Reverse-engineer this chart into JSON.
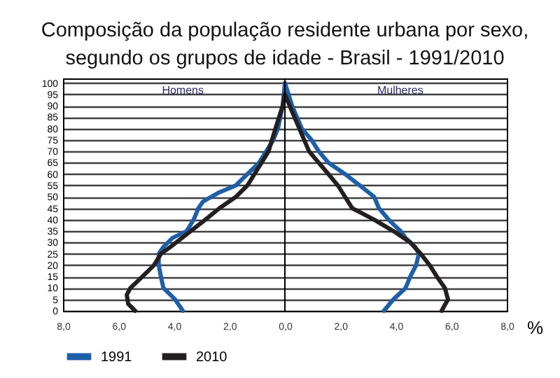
{
  "chart_data": {
    "type": "line",
    "title": "Composição da população residente urbana por sexo, segundo os grupos de idade - Brasil - 1991/2010",
    "xlabel": "%",
    "annotations": [
      "Homens",
      "Mulheres"
    ],
    "series": [
      {
        "name": "1991",
        "color": "#1f5fa8",
        "x": [
          -3.68,
          -3.96,
          -4.38,
          -4.47,
          -4.55,
          -4.55,
          -4.38,
          -4.05,
          -3.54,
          -3.29,
          -3.12,
          -2.95,
          -2.36,
          -1.77,
          -1.52,
          -0.93,
          -0.67,
          -0.42,
          -0.25,
          -0.08,
          0,
          0.26,
          0.61,
          0.96,
          1.22,
          1.57,
          2.17,
          2.7,
          3.22,
          3.39,
          3.74,
          4.17,
          4.35,
          4.7,
          4.83,
          4.73,
          4.52,
          4.35,
          3.91,
          3.57
        ],
        "values": [
          0,
          5,
          10,
          15,
          20,
          25,
          28,
          32,
          35,
          40,
          45,
          48,
          52,
          55,
          58,
          65,
          70,
          75,
          80,
          90,
          100,
          90,
          80,
          75,
          70,
          65,
          60,
          55,
          50,
          45,
          40,
          35,
          32,
          28,
          25,
          20,
          15,
          10,
          5,
          0
        ]
      },
      {
        "name": "2010",
        "color": "#231f20",
        "x": [
          -5.4,
          -5.65,
          -5.7,
          -5.57,
          -5.31,
          -4.97,
          -4.72,
          -4.47,
          -4.13,
          -3.71,
          -3.29,
          -2.87,
          -2.36,
          -1.77,
          -1.35,
          -1.1,
          -0.84,
          -0.59,
          -0.34,
          -0.08,
          0,
          0.17,
          0.52,
          0.87,
          1.22,
          1.57,
          1.91,
          2.17,
          2.43,
          3.22,
          3.91,
          4.52,
          4.9,
          5.22,
          5.48,
          5.77,
          5.88,
          5.65
        ],
        "values": [
          0,
          3,
          7,
          10,
          13,
          17,
          20,
          25,
          28,
          32,
          36,
          40,
          45,
          50,
          55,
          60,
          65,
          70,
          80,
          90,
          95,
          90,
          80,
          70,
          65,
          60,
          55,
          50,
          45,
          40,
          35,
          30,
          25,
          20,
          15,
          10,
          5,
          0
        ]
      }
    ],
    "xlim": [
      -8,
      8
    ],
    "xticks": [
      {
        "value": -8,
        "label": "8,0"
      },
      {
        "value": -6,
        "label": "6,0"
      },
      {
        "value": -4,
        "label": "4,0"
      },
      {
        "value": -2,
        "label": "2,0"
      },
      {
        "value": 0,
        "label": "0,0"
      },
      {
        "value": 2,
        "label": "2,0"
      },
      {
        "value": 4,
        "label": "4,0"
      },
      {
        "value": 6,
        "label": "6,0"
      },
      {
        "value": 8,
        "label": "8,0"
      }
    ],
    "ylim": [
      0,
      102
    ],
    "yticks": [
      0,
      5,
      10,
      15,
      20,
      25,
      30,
      35,
      40,
      45,
      50,
      55,
      60,
      65,
      70,
      75,
      80,
      85,
      90,
      95,
      100
    ],
    "ref_lines": [
      {
        "axis": "x",
        "value": 0,
        "color": "#000000"
      }
    ],
    "grid": "y",
    "legend": "bottom",
    "marker": "none",
    "line_style": "solid"
  }
}
